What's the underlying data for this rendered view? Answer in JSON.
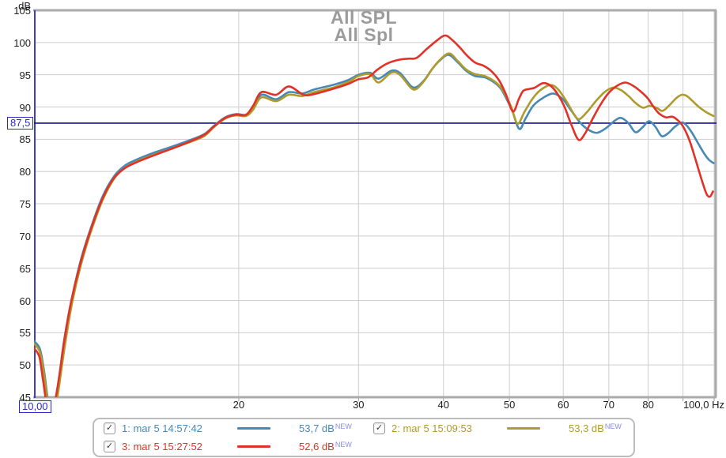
{
  "title": {
    "line1": "All SPL",
    "line2": "All Spl"
  },
  "colors": {
    "blue_curve": "#4689b6",
    "olive_curve": "#af9b2c",
    "red_curve": "#e23228",
    "target_line": "#11118c",
    "axis_line": "#3c3ccd",
    "cursor_blue": "#2a2ac8",
    "grid": "#cdcdcd",
    "border_gray": "#ababab",
    "title_gray": "#9b9b9b",
    "tick_text": "#1d1d1d",
    "new_tag": "#8b8bf0",
    "legend_border": "#bcbcbc"
  },
  "y_axis": {
    "unit": "dB",
    "tick_labels": [
      "105",
      "100",
      "95",
      "90",
      "85",
      "80",
      "75",
      "70",
      "65",
      "60",
      "55",
      "50",
      "45"
    ],
    "tick_values": [
      105,
      100,
      95,
      90,
      85,
      80,
      75,
      70,
      65,
      60,
      55,
      50,
      45
    ]
  },
  "x_axis": {
    "unit": "Hz",
    "ticks": [
      {
        "f": 20,
        "label": "20"
      },
      {
        "f": 30,
        "label": "30"
      },
      {
        "f": 40,
        "label": "40"
      },
      {
        "f": 50,
        "label": "50"
      },
      {
        "f": 60,
        "label": "60"
      },
      {
        "f": 70,
        "label": "70"
      },
      {
        "f": 80,
        "label": "80"
      },
      {
        "f": 90,
        "label": ""
      },
      {
        "f": 100,
        "label": "100,0 Hz"
      }
    ]
  },
  "cursor": {
    "y_label": "87,5",
    "x_label": "10,00"
  },
  "legend": {
    "check_glyph": "✓",
    "items": [
      {
        "label": "1: mar 5 14:57:42",
        "value": "53,7 dB",
        "tag": "NEW",
        "color": "#4689b6",
        "checked": true,
        "row": 0,
        "col": 0
      },
      {
        "label": "2: mar 5 15:09:53",
        "value": "53,3 dB",
        "tag": "NEW",
        "color": "#af9b2c",
        "checked": true,
        "row": 0,
        "col": 1
      },
      {
        "label": "3: mar 5 15:27:52",
        "value": "52,6 dB",
        "tag": "NEW",
        "color": "#e23228",
        "checked": true,
        "row": 1,
        "col": 0
      }
    ]
  },
  "chart_data": {
    "type": "line",
    "title": "All SPL",
    "xlabel": "Hz",
    "ylabel": "dB",
    "x_scale": "log",
    "xlim": [
      10,
      100
    ],
    "ylim": [
      45,
      105
    ],
    "grid": true,
    "target_line_db": 87.5,
    "legend_position": "bottom",
    "series": [
      {
        "name": "1: mar 5 14:57:42",
        "color": "#4689b6",
        "points": [
          [
            10,
            53.7
          ],
          [
            10.2,
            52.5
          ],
          [
            10.35,
            49
          ],
          [
            10.5,
            44
          ],
          [
            10.62,
            42.5
          ],
          [
            10.78,
            45
          ],
          [
            10.95,
            50
          ],
          [
            11.1,
            54.5
          ],
          [
            11.35,
            60
          ],
          [
            11.7,
            66
          ],
          [
            12.1,
            71
          ],
          [
            12.6,
            76
          ],
          [
            13.1,
            79.2
          ],
          [
            13.6,
            80.9
          ],
          [
            14.2,
            81.9
          ],
          [
            15,
            82.9
          ],
          [
            16,
            83.9
          ],
          [
            17,
            84.9
          ],
          [
            17.8,
            85.8
          ],
          [
            18.4,
            87.1
          ],
          [
            19.1,
            88.4
          ],
          [
            19.8,
            88.9
          ],
          [
            20.5,
            88.8
          ],
          [
            21,
            89.9
          ],
          [
            21.6,
            91.9
          ],
          [
            22.7,
            91.2
          ],
          [
            23.7,
            92.3
          ],
          [
            24.8,
            92.1
          ],
          [
            25.8,
            92.7
          ],
          [
            27.7,
            93.5
          ],
          [
            29,
            94.2
          ],
          [
            30,
            95.0
          ],
          [
            31.2,
            95.3
          ],
          [
            32.1,
            94.4
          ],
          [
            33.5,
            95.6
          ],
          [
            34.5,
            95.3
          ],
          [
            35.8,
            93.3
          ],
          [
            36.5,
            93.1
          ],
          [
            37.5,
            94.2
          ],
          [
            38.5,
            95.9
          ],
          [
            39.5,
            97.2
          ],
          [
            40.7,
            98.1
          ],
          [
            42,
            96.9
          ],
          [
            43.2,
            95.6
          ],
          [
            44.5,
            94.8
          ],
          [
            46,
            94.6
          ],
          [
            47.5,
            93.8
          ],
          [
            48.6,
            92.8
          ],
          [
            49.6,
            91.1
          ],
          [
            50.5,
            89.4
          ],
          [
            51.7,
            86.6
          ],
          [
            52.8,
            88.2
          ],
          [
            54.2,
            90.2
          ],
          [
            56,
            91.4
          ],
          [
            58,
            92.1
          ],
          [
            59.8,
            91.3
          ],
          [
            61.5,
            89.6
          ],
          [
            63.5,
            87.6
          ],
          [
            65.5,
            86.4
          ],
          [
            67.3,
            86.0
          ],
          [
            69.3,
            86.7
          ],
          [
            71.5,
            87.9
          ],
          [
            73,
            88.3
          ],
          [
            74.8,
            87.5
          ],
          [
            76.6,
            86.1
          ],
          [
            78.4,
            86.8
          ],
          [
            80.2,
            87.8
          ],
          [
            82,
            86.9
          ],
          [
            83.7,
            85.5
          ],
          [
            85.5,
            85.9
          ],
          [
            87.5,
            86.9
          ],
          [
            89.5,
            87.6
          ],
          [
            91,
            87.2
          ],
          [
            92.8,
            86.0
          ],
          [
            94.8,
            84.3
          ],
          [
            96.8,
            82.7
          ],
          [
            98.3,
            81.8
          ],
          [
            99.8,
            81.3
          ]
        ]
      },
      {
        "name": "2: mar 5 15:09:53",
        "color": "#af9b2c",
        "points": [
          [
            10,
            53.3
          ],
          [
            10.2,
            52.0
          ],
          [
            10.35,
            48.5
          ],
          [
            10.5,
            43.5
          ],
          [
            10.62,
            42.5
          ],
          [
            10.8,
            44.5
          ],
          [
            10.98,
            49.5
          ],
          [
            11.12,
            53.5
          ],
          [
            11.37,
            59.5
          ],
          [
            11.72,
            65.5
          ],
          [
            12.12,
            70.6
          ],
          [
            12.62,
            75.6
          ],
          [
            13.12,
            78.9
          ],
          [
            13.62,
            80.6
          ],
          [
            14.2,
            81.6
          ],
          [
            15,
            82.6
          ],
          [
            16,
            83.6
          ],
          [
            17,
            84.6
          ],
          [
            17.8,
            85.5
          ],
          [
            18.4,
            86.9
          ],
          [
            19.1,
            88.2
          ],
          [
            19.8,
            88.7
          ],
          [
            20.5,
            88.6
          ],
          [
            21,
            89.6
          ],
          [
            21.6,
            91.5
          ],
          [
            22.7,
            90.9
          ],
          [
            23.7,
            91.9
          ],
          [
            24.8,
            91.7
          ],
          [
            25.8,
            92.3
          ],
          [
            27.7,
            93.1
          ],
          [
            29,
            93.9
          ],
          [
            30,
            94.8
          ],
          [
            31.2,
            95.1
          ],
          [
            32.1,
            93.8
          ],
          [
            33.5,
            95.3
          ],
          [
            34.5,
            95.0
          ],
          [
            35.8,
            93.0
          ],
          [
            36.5,
            92.8
          ],
          [
            37.5,
            94.1
          ],
          [
            38.5,
            95.9
          ],
          [
            39.5,
            97.3
          ],
          [
            40.8,
            98.3
          ],
          [
            42,
            97.1
          ],
          [
            43.2,
            95.8
          ],
          [
            44.5,
            95.1
          ],
          [
            46,
            94.8
          ],
          [
            47.5,
            94.0
          ],
          [
            48.6,
            93.0
          ],
          [
            49.6,
            91.4
          ],
          [
            50.4,
            89.8
          ],
          [
            51.4,
            87.4
          ],
          [
            52.6,
            89.2
          ],
          [
            54,
            91.2
          ],
          [
            55.5,
            92.6
          ],
          [
            57.5,
            93.4
          ],
          [
            59,
            92.7
          ],
          [
            60.8,
            90.7
          ],
          [
            62.2,
            88.9
          ],
          [
            63.3,
            88.1
          ],
          [
            65,
            89.2
          ],
          [
            67,
            90.9
          ],
          [
            69,
            92.3
          ],
          [
            71,
            93.0
          ],
          [
            73,
            92.6
          ],
          [
            75,
            91.6
          ],
          [
            76.5,
            90.7
          ],
          [
            78.5,
            89.9
          ],
          [
            80.5,
            90.2
          ],
          [
            82.5,
            89.8
          ],
          [
            84,
            89.4
          ],
          [
            86,
            90.3
          ],
          [
            88,
            91.4
          ],
          [
            89.7,
            91.9
          ],
          [
            91.2,
            91.7
          ],
          [
            93,
            90.9
          ],
          [
            95,
            90.0
          ],
          [
            97,
            89.3
          ],
          [
            98.5,
            88.9
          ],
          [
            99.8,
            88.6
          ]
        ]
      },
      {
        "name": "3: mar 5 15:27:52",
        "color": "#e23228",
        "points": [
          [
            10,
            52.6
          ],
          [
            10.18,
            51.3
          ],
          [
            10.3,
            48
          ],
          [
            10.45,
            43.5
          ],
          [
            10.56,
            42.5
          ],
          [
            10.72,
            44
          ],
          [
            10.9,
            48.5
          ],
          [
            11.05,
            53
          ],
          [
            11.3,
            59
          ],
          [
            11.65,
            65
          ],
          [
            12.05,
            70.2
          ],
          [
            12.55,
            75.3
          ],
          [
            13.05,
            78.7
          ],
          [
            13.55,
            80.4
          ],
          [
            14.2,
            81.5
          ],
          [
            15,
            82.5
          ],
          [
            16,
            83.6
          ],
          [
            17,
            84.7
          ],
          [
            17.8,
            85.7
          ],
          [
            18.4,
            87.0
          ],
          [
            19.1,
            88.3
          ],
          [
            19.8,
            88.8
          ],
          [
            20.5,
            88.8
          ],
          [
            21,
            90.2
          ],
          [
            21.6,
            92.3
          ],
          [
            22.7,
            91.9
          ],
          [
            23.7,
            93.2
          ],
          [
            24.9,
            91.9
          ],
          [
            25.8,
            92.0
          ],
          [
            27.7,
            92.9
          ],
          [
            29,
            93.6
          ],
          [
            30,
            94.3
          ],
          [
            31,
            94.6
          ],
          [
            32,
            95.8
          ],
          [
            33,
            96.7
          ],
          [
            34.3,
            97.3
          ],
          [
            35.5,
            97.5
          ],
          [
            36.5,
            97.6
          ],
          [
            37.8,
            99.0
          ],
          [
            39,
            100.2
          ],
          [
            40.2,
            101.1
          ],
          [
            41.2,
            100.4
          ],
          [
            42.3,
            99.2
          ],
          [
            43.3,
            98.0
          ],
          [
            44.5,
            96.9
          ],
          [
            45.8,
            96.4
          ],
          [
            47,
            95.6
          ],
          [
            48.3,
            94.1
          ],
          [
            49.4,
            92.0
          ],
          [
            50.6,
            89.3
          ],
          [
            51.6,
            91.2
          ],
          [
            52.4,
            92.5
          ],
          [
            53.5,
            92.8
          ],
          [
            54.5,
            93.0
          ],
          [
            56,
            93.7
          ],
          [
            57.3,
            93.4
          ],
          [
            58.7,
            92.2
          ],
          [
            60.2,
            90.1
          ],
          [
            61.7,
            87.2
          ],
          [
            63.2,
            84.9
          ],
          [
            64.6,
            85.9
          ],
          [
            66,
            87.8
          ],
          [
            68,
            90.3
          ],
          [
            70,
            92.2
          ],
          [
            72,
            93.3
          ],
          [
            74,
            93.8
          ],
          [
            76,
            93.3
          ],
          [
            78,
            92.4
          ],
          [
            79.8,
            91.4
          ],
          [
            81.5,
            90.0
          ],
          [
            83,
            89.0
          ],
          [
            85,
            88.4
          ],
          [
            86.8,
            88.5
          ],
          [
            88.3,
            88.0
          ],
          [
            90,
            87.0
          ],
          [
            92,
            84.8
          ],
          [
            94,
            81.7
          ],
          [
            96,
            78.5
          ],
          [
            97.5,
            76.5
          ],
          [
            98.6,
            76.1
          ],
          [
            99.6,
            76.9
          ]
        ]
      }
    ]
  }
}
